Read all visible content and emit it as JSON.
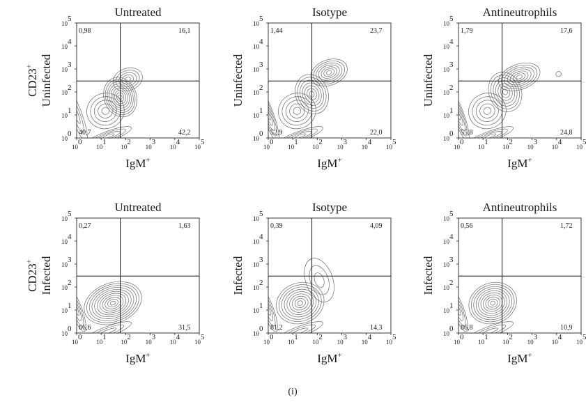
{
  "figure_label": "(i)",
  "chart_data": [
    {
      "type": "contour",
      "title": "Untreated",
      "ylabel_lines": [
        "CD23",
        "Uninfected"
      ],
      "ylabel_sup": "+",
      "xlabel": "IgM",
      "xlabel_sup": "+",
      "axis_scale": "log",
      "xlim": [
        1,
        100000
      ],
      "ylim": [
        1,
        100000
      ],
      "x_gate": 60,
      "y_gate": 300,
      "x_ticks": [
        "10",
        "10",
        "10",
        "10",
        "10",
        "10"
      ],
      "x_tick_exp": [
        "0",
        "1",
        "2",
        "3",
        "4",
        "5"
      ],
      "y_ticks": [
        "10",
        "10",
        "10",
        "10",
        "10",
        "10"
      ],
      "y_tick_exp": [
        "0",
        "1",
        "2",
        "3",
        "4",
        "5"
      ],
      "quadrants": {
        "upper_left": "0,98",
        "upper_right": "16,1",
        "lower_left": "40,7",
        "lower_right": "42,2"
      },
      "populations": [
        {
          "x": 1,
          "y": 10,
          "sx": 0.1,
          "sy": 0.55,
          "w": 0.7,
          "levels": 3
        },
        {
          "x": 15,
          "y": 15,
          "sx": 0.35,
          "sy": 0.35,
          "w": 0.9,
          "levels": 5
        },
        {
          "x": 60,
          "y": 60,
          "sx": 0.3,
          "sy": 0.4,
          "w": 1,
          "levels": 9
        },
        {
          "x": 120,
          "y": 350,
          "sx": 0.28,
          "sy": 0.22,
          "w": 0.7,
          "levels": 5
        },
        {
          "x": 20,
          "y": 1.2,
          "sx": 0.45,
          "sy": 0.1,
          "w": 0.8,
          "levels": 4
        }
      ]
    },
    {
      "type": "contour",
      "title": "Isotype",
      "ylabel_lines": [
        "Uninfected"
      ],
      "ylabel_sup": "",
      "xlabel": "IgM",
      "xlabel_sup": "+",
      "axis_scale": "log",
      "xlim": [
        1,
        100000
      ],
      "ylim": [
        1,
        100000
      ],
      "x_gate": 60,
      "y_gate": 300,
      "x_ticks": [
        "10",
        "10",
        "10",
        "10",
        "10",
        "10"
      ],
      "x_tick_exp": [
        "0",
        "1",
        "2",
        "3",
        "4",
        "5"
      ],
      "y_ticks": [
        "10",
        "10",
        "10",
        "10",
        "10",
        "10"
      ],
      "y_tick_exp": [
        "0",
        "1",
        "2",
        "3",
        "4",
        "5"
      ],
      "quadrants": {
        "upper_left": "1,44",
        "upper_right": "23,7",
        "lower_left": "52,9",
        "lower_right": "22,0"
      },
      "populations": [
        {
          "x": 1,
          "y": 10,
          "sx": 0.1,
          "sy": 0.55,
          "w": 0.9,
          "levels": 5
        },
        {
          "x": 15,
          "y": 15,
          "sx": 0.35,
          "sy": 0.35,
          "w": 0.8,
          "levels": 5
        },
        {
          "x": 60,
          "y": 80,
          "sx": 0.3,
          "sy": 0.4,
          "w": 0.9,
          "levels": 7
        },
        {
          "x": 300,
          "y": 700,
          "sx": 0.35,
          "sy": 0.25,
          "w": 0.9,
          "levels": 7
        },
        {
          "x": 20,
          "y": 1.2,
          "sx": 0.45,
          "sy": 0.1,
          "w": 0.8,
          "levels": 4
        }
      ]
    },
    {
      "type": "contour",
      "title": "Antineutrophils",
      "ylabel_lines": [
        "Uninfected"
      ],
      "ylabel_sup": "",
      "xlabel": "IgM",
      "xlabel_sup": "+",
      "axis_scale": "log",
      "xlim": [
        1,
        100000
      ],
      "ylim": [
        1,
        100000
      ],
      "x_gate": 60,
      "y_gate": 300,
      "x_ticks": [
        "10",
        "10",
        "10",
        "10",
        "10",
        "10"
      ],
      "x_tick_exp": [
        "0",
        "1",
        "2",
        "3",
        "4",
        "5"
      ],
      "y_ticks": [
        "10",
        "10",
        "10",
        "10",
        "10",
        "10"
      ],
      "y_tick_exp": [
        "0",
        "1",
        "2",
        "3",
        "4",
        "5"
      ],
      "quadrants": {
        "upper_left": "1,79",
        "upper_right": "17,6",
        "lower_left": "55,8",
        "lower_right": "24,8"
      },
      "populations": [
        {
          "x": 1,
          "y": 10,
          "sx": 0.1,
          "sy": 0.55,
          "w": 0.9,
          "levels": 5
        },
        {
          "x": 15,
          "y": 15,
          "sx": 0.35,
          "sy": 0.35,
          "w": 0.8,
          "levels": 5
        },
        {
          "x": 80,
          "y": 100,
          "sx": 0.3,
          "sy": 0.4,
          "w": 0.9,
          "levels": 7
        },
        {
          "x": 300,
          "y": 450,
          "sx": 0.4,
          "sy": 0.25,
          "w": 0.9,
          "levels": 7
        },
        {
          "x": 20,
          "y": 1.2,
          "sx": 0.45,
          "sy": 0.1,
          "w": 0.8,
          "levels": 4
        },
        {
          "x": 12000,
          "y": 600,
          "sx": 0.05,
          "sy": 0.05,
          "w": 0.3,
          "levels": 1
        }
      ]
    },
    {
      "type": "contour",
      "title": "Untreated",
      "ylabel_lines": [
        "CD23",
        "Infected"
      ],
      "ylabel_sup": "+",
      "xlabel": "IgM",
      "xlabel_sup": "+",
      "axis_scale": "log",
      "xlim": [
        1,
        100000
      ],
      "ylim": [
        1,
        100000
      ],
      "x_gate": 60,
      "y_gate": 300,
      "x_ticks": [
        "10",
        "10",
        "10",
        "10",
        "10",
        "10"
      ],
      "x_tick_exp": [
        "0",
        "1",
        "2",
        "3",
        "4",
        "5"
      ],
      "y_ticks": [
        "10",
        "10",
        "10",
        "10",
        "10",
        "10"
      ],
      "y_tick_exp": [
        "0",
        "1",
        "2",
        "3",
        "4",
        "5"
      ],
      "quadrants": {
        "upper_left": "0,27",
        "upper_right": "1,63",
        "lower_left": "66,6",
        "lower_right": "31,5"
      },
      "populations": [
        {
          "x": 1,
          "y": 10,
          "sx": 0.1,
          "sy": 0.45,
          "w": 0.8,
          "levels": 4
        },
        {
          "x": 30,
          "y": 20,
          "sx": 0.55,
          "sy": 0.4,
          "w": 1,
          "levels": 11
        },
        {
          "x": 20,
          "y": 1.2,
          "sx": 0.45,
          "sy": 0.1,
          "w": 0.7,
          "levels": 3
        }
      ]
    },
    {
      "type": "contour",
      "title": "Isotype",
      "ylabel_lines": [
        "Infected"
      ],
      "ylabel_sup": "",
      "xlabel": "IgM",
      "xlabel_sup": "+",
      "axis_scale": "log",
      "xlim": [
        1,
        100000
      ],
      "ylim": [
        1,
        100000
      ],
      "x_gate": 60,
      "y_gate": 300,
      "x_ticks": [
        "10",
        "10",
        "10",
        "10",
        "10",
        "10"
      ],
      "x_tick_exp": [
        "0",
        "1",
        "2",
        "3",
        "4",
        "5"
      ],
      "y_ticks": [
        "10",
        "10",
        "10",
        "10",
        "10",
        "10"
      ],
      "y_tick_exp": [
        "0",
        "1",
        "2",
        "3",
        "4",
        "5"
      ],
      "quadrants": {
        "upper_left": "0,39",
        "upper_right": "4,09",
        "lower_left": "81,2",
        "lower_right": "14,3"
      },
      "populations": [
        {
          "x": 1,
          "y": 10,
          "sx": 0.1,
          "sy": 0.45,
          "w": 0.8,
          "levels": 4
        },
        {
          "x": 20,
          "y": 20,
          "sx": 0.45,
          "sy": 0.4,
          "w": 1,
          "levels": 9
        },
        {
          "x": 120,
          "y": 200,
          "sx": 0.25,
          "sy": 0.45,
          "w": 0.4,
          "levels": 3
        },
        {
          "x": 20,
          "y": 1.2,
          "sx": 0.45,
          "sy": 0.1,
          "w": 0.7,
          "levels": 3
        }
      ]
    },
    {
      "type": "contour",
      "title": "Antineutrophils",
      "ylabel_lines": [
        "Infected"
      ],
      "ylabel_sup": "",
      "xlabel": "IgM",
      "xlabel_sup": "+",
      "axis_scale": "log",
      "xlim": [
        1,
        100000
      ],
      "ylim": [
        1,
        100000
      ],
      "x_gate": 60,
      "y_gate": 300,
      "x_ticks": [
        "10",
        "10",
        "10",
        "10",
        "10",
        "10"
      ],
      "x_tick_exp": [
        "0",
        "1",
        "2",
        "3",
        "4",
        "5"
      ],
      "y_ticks": [
        "10",
        "10",
        "10",
        "10",
        "10",
        "10"
      ],
      "y_tick_exp": [
        "0",
        "1",
        "2",
        "3",
        "4",
        "5"
      ],
      "quadrants": {
        "upper_left": "0,56",
        "upper_right": "1,72",
        "lower_left": "86,8",
        "lower_right": "10,9"
      },
      "populations": [
        {
          "x": 1,
          "y": 10,
          "sx": 0.1,
          "sy": 0.45,
          "w": 0.8,
          "levels": 4
        },
        {
          "x": 25,
          "y": 20,
          "sx": 0.45,
          "sy": 0.4,
          "w": 1,
          "levels": 10
        },
        {
          "x": 20,
          "y": 1.2,
          "sx": 0.45,
          "sy": 0.1,
          "w": 0.7,
          "levels": 3
        }
      ]
    }
  ]
}
